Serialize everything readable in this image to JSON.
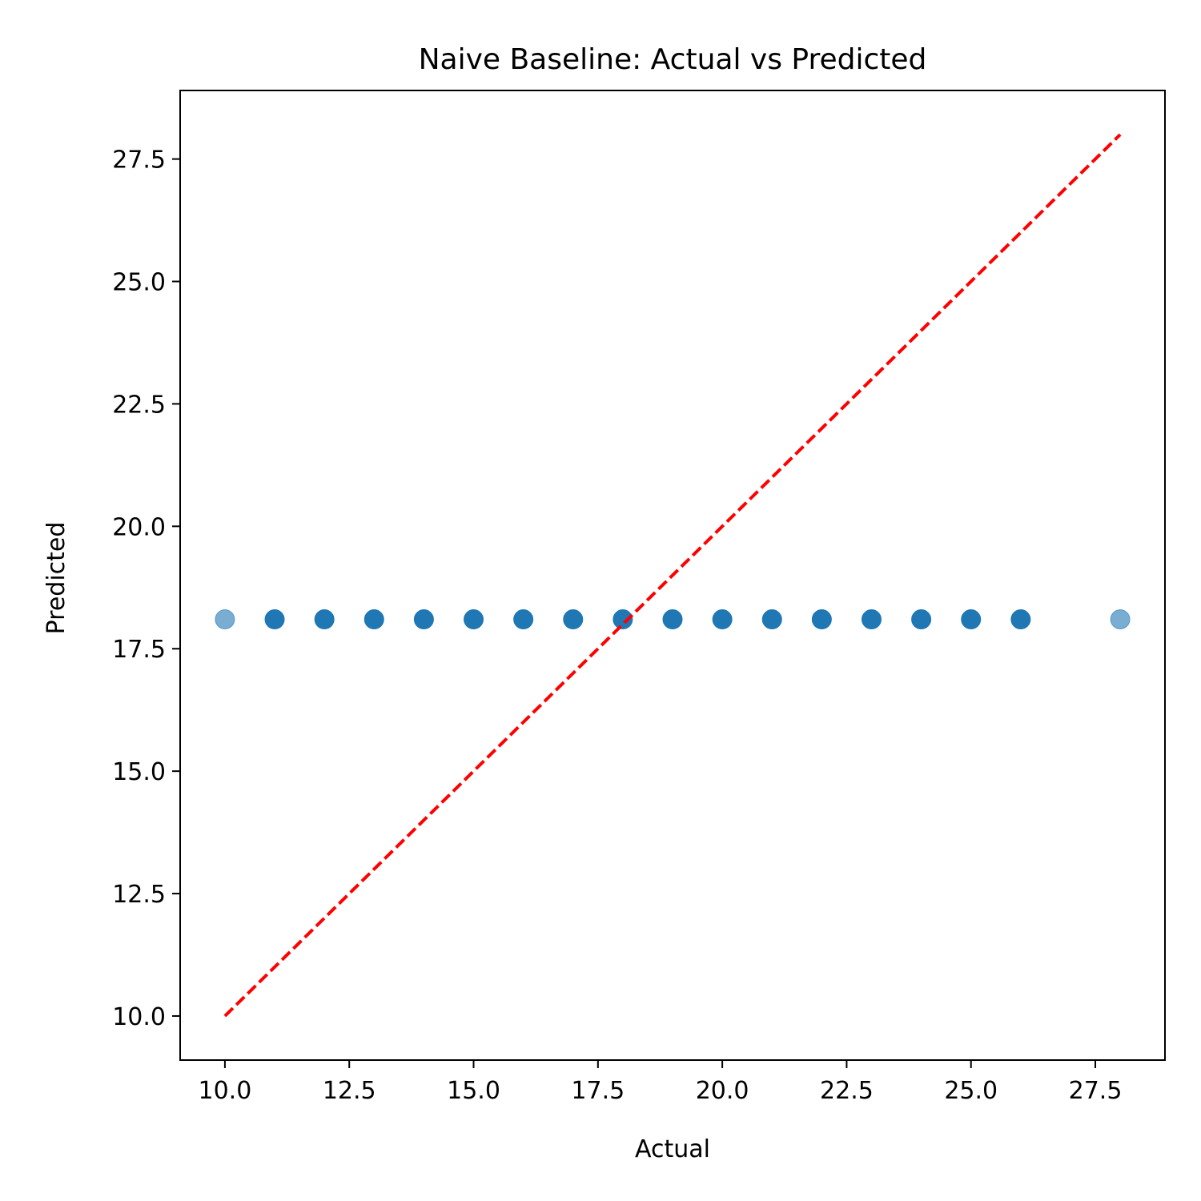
{
  "chart_data": {
    "type": "scatter",
    "title": "Naive Baseline: Actual vs Predicted",
    "xlabel": "Actual",
    "ylabel": "Predicted",
    "xlim": [
      9.1,
      28.9
    ],
    "ylim": [
      9.1,
      28.9
    ],
    "xticks": [
      10.0,
      12.5,
      15.0,
      17.5,
      20.0,
      22.5,
      25.0,
      27.5
    ],
    "yticks": [
      10.0,
      12.5,
      15.0,
      17.5,
      20.0,
      22.5,
      25.0,
      27.5
    ],
    "xtick_labels": [
      "10.0",
      "12.5",
      "15.0",
      "17.5",
      "20.0",
      "22.5",
      "25.0",
      "27.5"
    ],
    "ytick_labels": [
      "10.0",
      "12.5",
      "15.0",
      "17.5",
      "20.0",
      "22.5",
      "25.0",
      "27.5"
    ],
    "grid": false,
    "series": [
      {
        "kind": "scatter",
        "color": "#1f77b4",
        "x": [
          10,
          11,
          12,
          13,
          14,
          15,
          16,
          17,
          18,
          19,
          20,
          21,
          22,
          23,
          24,
          25,
          26,
          28
        ],
        "y": [
          18.1,
          18.1,
          18.1,
          18.1,
          18.1,
          18.1,
          18.1,
          18.1,
          18.1,
          18.1,
          18.1,
          18.1,
          18.1,
          18.1,
          18.1,
          18.1,
          18.1,
          18.1
        ],
        "opacity": [
          0.6,
          1,
          1,
          1,
          1,
          1,
          1,
          1,
          1,
          1,
          1,
          1,
          1,
          1,
          1,
          1,
          1,
          0.6
        ]
      },
      {
        "kind": "line",
        "style": "dashed",
        "color": "#ff0000",
        "x": [
          10,
          28
        ],
        "y": [
          10,
          28
        ]
      }
    ]
  }
}
